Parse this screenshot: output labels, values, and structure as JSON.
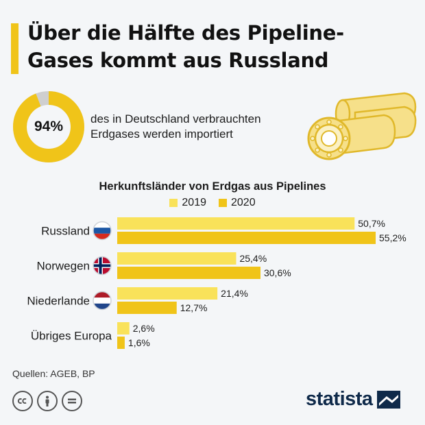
{
  "header": {
    "title_line1": "Über die Hälfte des Pipeline-",
    "title_line2": "Gases kommt aus Russland",
    "accent_color": "#f0c419"
  },
  "highlight": {
    "percent_value": 94,
    "percent_label": "94%",
    "text_line1": "des in Deutschland verbrauchten",
    "text_line2": "Erdgases werden importiert",
    "ring_color": "#f0c419",
    "ring_rest_color": "#cfcfcf"
  },
  "chart_data": {
    "type": "bar",
    "orientation": "horizontal",
    "title": "Herkunftsländer von Erdgas aus Pipelines",
    "categories": [
      "Russland",
      "Norwegen",
      "Niederlande",
      "Übriges Europa"
    ],
    "series": [
      {
        "name": "2019",
        "color": "#f9e25a",
        "values": [
          50.7,
          25.4,
          21.4,
          2.6
        ],
        "labels": [
          "50,7%",
          "25,4%",
          "21,4%",
          "2,6%"
        ]
      },
      {
        "name": "2020",
        "color": "#f0c419",
        "values": [
          55.2,
          30.6,
          12.7,
          1.6
        ],
        "labels": [
          "55,2%",
          "30,6%",
          "12,7%",
          "1,6%"
        ]
      }
    ],
    "flags": [
      "russia-flag-icon",
      "norway-flag-icon",
      "netherlands-flag-icon",
      null
    ],
    "xlim": [
      0,
      60
    ],
    "grid": false,
    "legend_position": "top-center"
  },
  "footer": {
    "source": "Quellen: AGEB, BP",
    "license_icons": [
      "cc-icon",
      "by-icon",
      "nd-icon"
    ],
    "brand": "statista"
  }
}
